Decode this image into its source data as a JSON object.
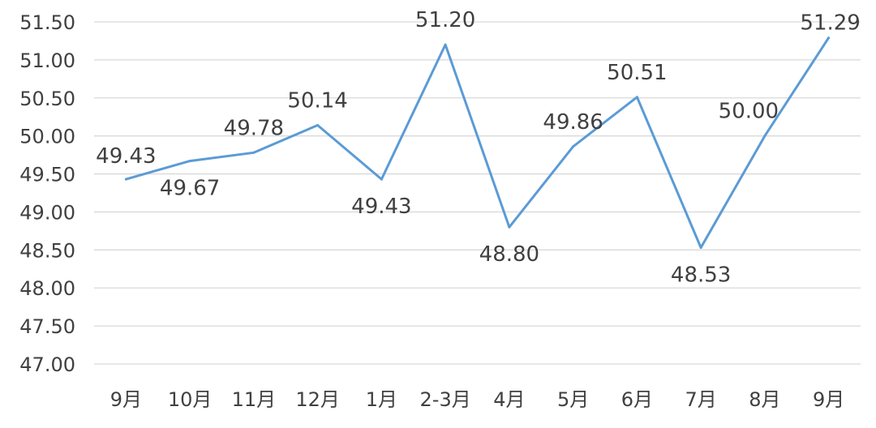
{
  "chart_data": {
    "type": "line",
    "categories": [
      "9月",
      "10月",
      "11月",
      "12月",
      "1月",
      "2-3月",
      "4月",
      "5月",
      "6月",
      "7月",
      "8月",
      "9月"
    ],
    "series": [
      {
        "values": [
          49.43,
          49.67,
          49.78,
          50.14,
          49.43,
          51.2,
          48.8,
          49.86,
          50.51,
          48.53,
          50.0,
          51.29
        ],
        "color": "#5b9bd5",
        "data_labels": [
          "49.43",
          "49.67",
          "49.78",
          "50.14",
          "49.43",
          "51.20",
          "48.80",
          "49.86",
          "50.51",
          "48.53",
          "50.00",
          "51.29"
        ]
      }
    ],
    "ylim": [
      47.0,
      51.5
    ],
    "yticks": [
      47.0,
      47.5,
      48.0,
      48.5,
      49.0,
      49.5,
      50.0,
      50.5,
      51.0,
      51.5
    ],
    "ytick_labels": [
      "47.00",
      "47.50",
      "48.00",
      "48.50",
      "49.00",
      "49.50",
      "50.00",
      "50.50",
      "51.00",
      "51.50"
    ],
    "grid": true,
    "title": "",
    "xlabel": "",
    "ylabel": "",
    "legend": "none"
  }
}
